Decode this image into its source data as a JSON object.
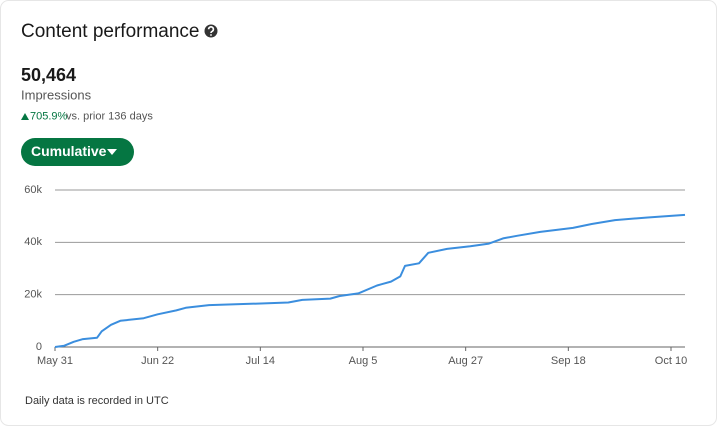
{
  "header": {
    "title": "Content performance"
  },
  "summary": {
    "total": "50,464",
    "metric": "Impressions",
    "change": "705.9%",
    "comparison": "vs. prior 136 days"
  },
  "button": {
    "label": "Cumulative"
  },
  "chart_data": {
    "type": "line",
    "color": "#3b8ede",
    "x": [
      0,
      2,
      4,
      6,
      9,
      10,
      12,
      14,
      19,
      22,
      26,
      28,
      33,
      42,
      50,
      53,
      59,
      61,
      65,
      69,
      72,
      74,
      75,
      78,
      80,
      84,
      89,
      93,
      96,
      99,
      104,
      111,
      115,
      120,
      127,
      135
    ],
    "values": [
      0,
      500,
      2000,
      3000,
      3500,
      6000,
      8500,
      10000,
      11000,
      12500,
      14000,
      15000,
      16000,
      16500,
      17000,
      18000,
      18500,
      19500,
      20500,
      23500,
      25000,
      27000,
      31000,
      32000,
      36000,
      37500,
      38500,
      39500,
      41500,
      42500,
      44000,
      45500,
      47000,
      48500,
      49500,
      50500
    ],
    "xlim": [
      0,
      135
    ],
    "xticks": [
      {
        "value": 0,
        "label": "May 31"
      },
      {
        "value": 22,
        "label": "Jun 22"
      },
      {
        "value": 44,
        "label": "Jul 14"
      },
      {
        "value": 66,
        "label": "Aug 5"
      },
      {
        "value": 88,
        "label": "Aug 27"
      },
      {
        "value": 110,
        "label": "Sep 18"
      },
      {
        "value": 132,
        "label": "Oct 10"
      }
    ],
    "ylim": [
      0,
      60000
    ],
    "yticks": [
      0,
      {
        "value": 20000,
        "label": "20k"
      },
      {
        "value": 40000,
        "label": "40k"
      },
      {
        "value": 60000,
        "label": "60k"
      }
    ],
    "grid": true
  },
  "footer": {
    "note": "Daily data is recorded in UTC"
  }
}
